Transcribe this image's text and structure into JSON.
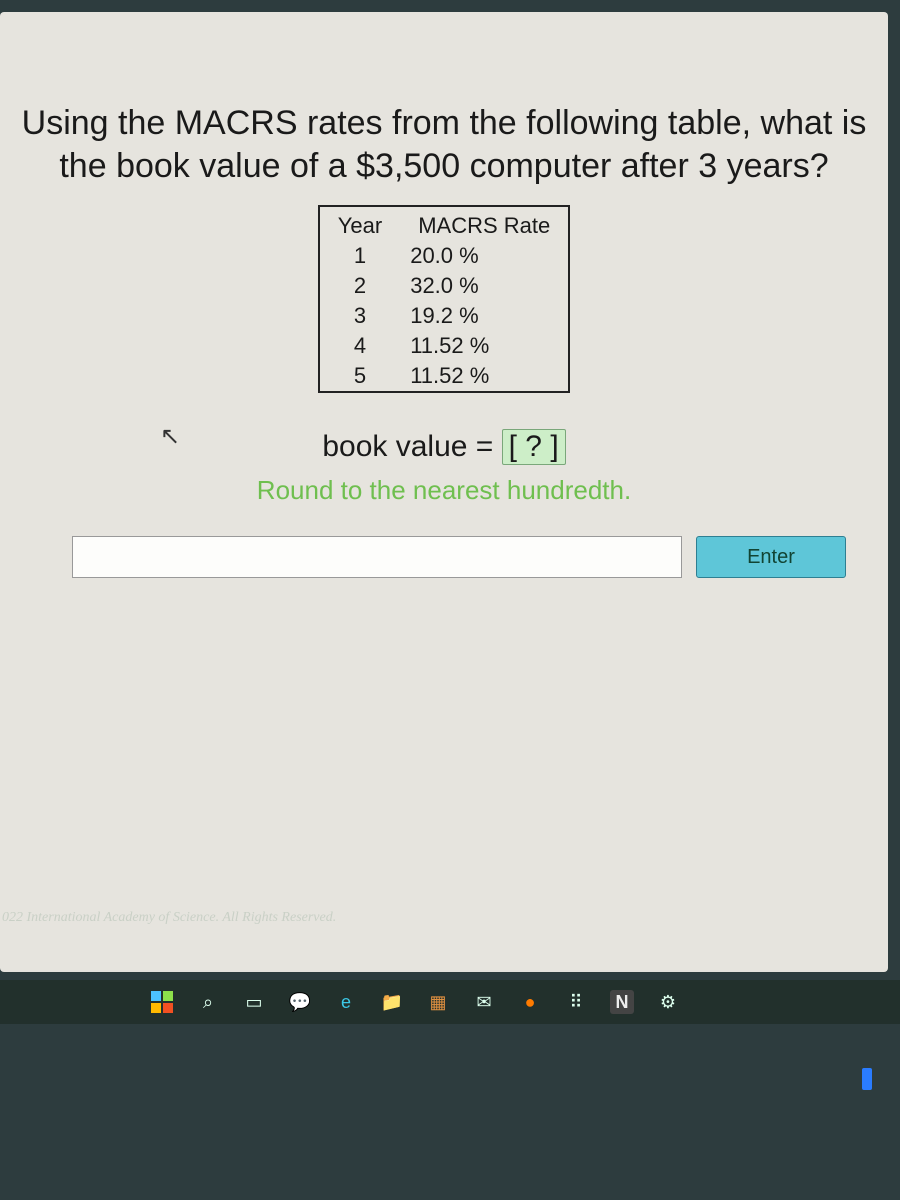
{
  "question": "Using the MACRS rates from the following table, what is the book value of a $3,500 computer after 3 years?",
  "table": {
    "headers": [
      "Year",
      "MACRS Rate"
    ],
    "rows": [
      {
        "year": "1",
        "rate": "20.0 %"
      },
      {
        "year": "2",
        "rate": "32.0 %"
      },
      {
        "year": "3",
        "rate": "19.2 %"
      },
      {
        "year": "4",
        "rate": "11.52 %"
      },
      {
        "year": "5",
        "rate": "11.52 %"
      }
    ]
  },
  "bookvalue_label": "book value =",
  "bookvalue_placeholder": "[ ? ]",
  "hint": "Round to the nearest hundredth.",
  "answer_value": "",
  "enter_label": "Enter",
  "footer": "022 International Academy of Science. All Rights Reserved.",
  "colors": {
    "page_bg": "#e6e4de",
    "text": "#1a1a1a",
    "hint": "#6fbf4f",
    "answer_highlight_bg": "#cdeec8",
    "answer_highlight_border": "#7aa77a",
    "enter_bg": "#5ec6d8",
    "enter_border": "#2e7f92",
    "outer_bg": "#2d3c3e"
  },
  "taskbar_icons": [
    {
      "name": "windows-start-icon"
    },
    {
      "name": "search-icon",
      "glyph": "⌕"
    },
    {
      "name": "task-view-icon",
      "glyph": "▭"
    },
    {
      "name": "chat-icon",
      "glyph": "💬"
    },
    {
      "name": "edge-icon",
      "glyph": "e"
    },
    {
      "name": "file-explorer-icon",
      "glyph": "📁"
    },
    {
      "name": "store-icon",
      "glyph": "▦"
    },
    {
      "name": "mail-icon",
      "glyph": "✉"
    },
    {
      "name": "firefox-icon",
      "glyph": "●"
    },
    {
      "name": "dropbox-icon",
      "glyph": "⠿"
    },
    {
      "name": "notion-icon",
      "glyph": "N"
    },
    {
      "name": "settings-icon",
      "glyph": "⚙"
    }
  ]
}
